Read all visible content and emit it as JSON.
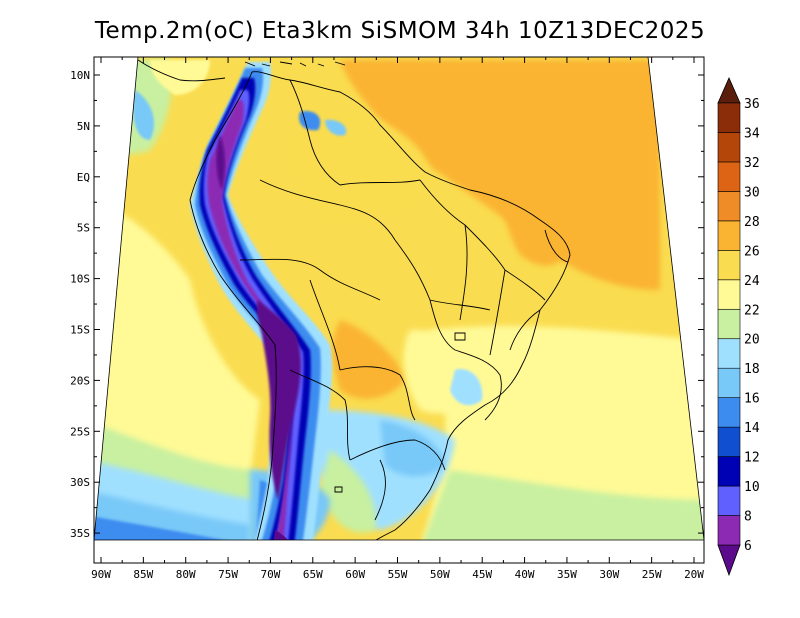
{
  "title": "Temp.2m(oC) Eta3km SiSMOM 34h 10Z13DEC2025",
  "map": {
    "variable": "2 m temperature",
    "lon_range": [
      -90,
      -20
    ],
    "lat_range": [
      -38,
      12
    ],
    "lat_ticks": [
      "10N",
      "5N",
      "EQ",
      "5S",
      "10S",
      "15S",
      "20S",
      "25S",
      "30S",
      "35S"
    ],
    "lon_ticks": [
      "90W",
      "85W",
      "80W",
      "75W",
      "70W",
      "65W",
      "60W",
      "55W",
      "50W",
      "45W",
      "40W",
      "35W",
      "30W",
      "25W",
      "20W"
    ]
  },
  "colorbar": {
    "labels": [
      "6",
      "8",
      "10",
      "12",
      "14",
      "16",
      "18",
      "20",
      "22",
      "24",
      "26",
      "28",
      "30",
      "32",
      "34",
      "36"
    ],
    "colors": [
      "#5c0a8c",
      "#8c2ab4",
      "#6060ff",
      "#0000b4",
      "#1050d0",
      "#3c8cf0",
      "#78c8f8",
      "#a0e0ff",
      "#c8f0a0",
      "#fffa96",
      "#fadc50",
      "#fab432",
      "#f08c28",
      "#dc6414",
      "#b4460a",
      "#8c2d0a",
      "#5a1e0a"
    ],
    "under_color": "#5c0a8c",
    "over_color": "#5a1e0a"
  }
}
